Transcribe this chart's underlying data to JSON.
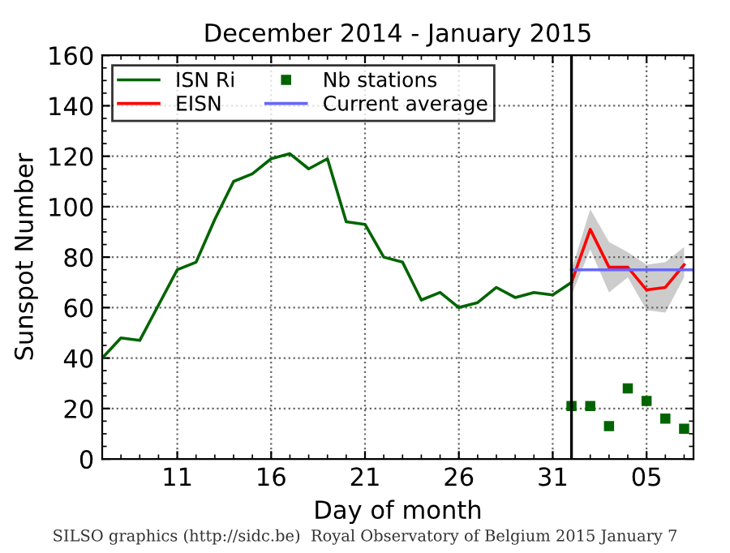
{
  "chart_data": {
    "type": "line",
    "title": "December 2014 - January 2015",
    "xlabel": "Day of month",
    "ylabel": "Sunspot Number",
    "annotations": [
      "SILSO graphics (http://sidc.be)  Royal Observatory of Belgium 2015 January 7"
    ],
    "series": [
      {
        "name": "ISN Ri",
        "color": "#006400",
        "x": [
          "2014-12-07",
          "2014-12-08",
          "2014-12-09",
          "2014-12-10",
          "2014-12-11",
          "2014-12-12",
          "2014-12-13",
          "2014-12-14",
          "2014-12-15",
          "2014-12-16",
          "2014-12-17",
          "2014-12-18",
          "2014-12-19",
          "2014-12-20",
          "2014-12-21",
          "2014-12-22",
          "2014-12-23",
          "2014-12-24",
          "2014-12-25",
          "2014-12-26",
          "2014-12-27",
          "2014-12-28",
          "2014-12-29",
          "2014-12-30",
          "2014-12-31",
          "2015-01-01"
        ],
        "values": [
          40,
          48,
          47,
          61,
          75,
          78,
          95,
          110,
          113,
          119,
          121,
          115,
          119,
          94,
          93,
          80,
          78,
          63,
          66,
          60,
          62,
          68,
          64,
          66,
          65,
          70
        ]
      },
      {
        "name": "EISN",
        "color": "#ff0000",
        "x": [
          "2015-01-01",
          "2015-01-02",
          "2015-01-03",
          "2015-01-04",
          "2015-01-05",
          "2015-01-06",
          "2015-01-07"
        ],
        "values": [
          70,
          91,
          76,
          76,
          67,
          68,
          77
        ],
        "lower": [
          65,
          83,
          66,
          72,
          59,
          58,
          72
        ],
        "upper": [
          75,
          99,
          86,
          82,
          77,
          78,
          84
        ]
      },
      {
        "name": "Nb stations",
        "type": "scatter",
        "color": "#006400",
        "marker": "square",
        "x": [
          "2015-01-01",
          "2015-01-02",
          "2015-01-03",
          "2015-01-04",
          "2015-01-05",
          "2015-01-06",
          "2015-01-07"
        ],
        "values": [
          21,
          21,
          13,
          28,
          23,
          16,
          12
        ]
      },
      {
        "name": "Current average",
        "color": "#6666ff",
        "x": [
          "2015-01-01",
          "2015-01-07T12:00"
        ],
        "values": [
          75,
          75
        ]
      }
    ],
    "ref_lines": [
      {
        "axis": "x",
        "value": "2015-01-01",
        "color": "#000000"
      }
    ],
    "xlim": [
      "2014-12-07",
      "2015-01-07T12:00"
    ],
    "xticks": [
      {
        "value": "2014-12-11",
        "label": "11"
      },
      {
        "value": "2014-12-16",
        "label": "16"
      },
      {
        "value": "2014-12-21",
        "label": "21"
      },
      {
        "value": "2014-12-26",
        "label": "26"
      },
      {
        "value": "2014-12-31",
        "label": "31"
      },
      {
        "value": "2015-01-05",
        "label": "05"
      }
    ],
    "ylim": [
      0,
      160
    ],
    "yticks": [
      0,
      20,
      40,
      60,
      80,
      100,
      120,
      140,
      160
    ],
    "grid": true,
    "legend": "top left",
    "line_style": "solid"
  }
}
